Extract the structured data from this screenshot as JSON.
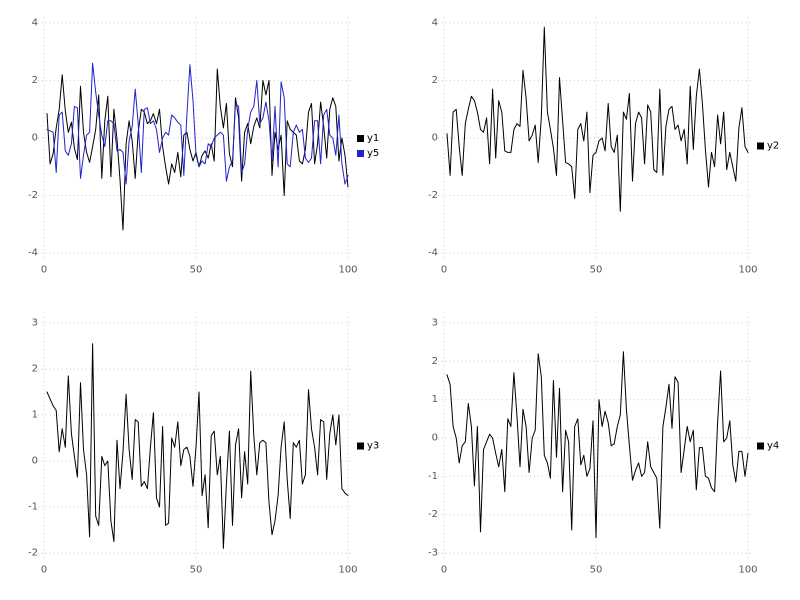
{
  "page": {
    "background": "#ffffff"
  },
  "colors": {
    "grid": "#ccccd6",
    "tick_label": "#555555",
    "legend_text": "#000000",
    "series_black": "#000000",
    "series_blue": "#2222cc"
  },
  "chart_data": [
    {
      "type": "line",
      "position": "top-left",
      "title": "",
      "xlabel": "",
      "ylabel": "",
      "grid": true,
      "legend_position": "right-middle",
      "x_ticks": [
        0,
        50,
        100
      ],
      "y_ticks": [
        -4,
        -2,
        0,
        2,
        4
      ],
      "xlim": [
        0,
        100
      ],
      "ylim": [
        -4,
        4
      ],
      "x_start": 1,
      "x_step": 1,
      "series": [
        {
          "name": "y1",
          "color": "#000000",
          "values": [
            0.85,
            -0.9,
            -0.55,
            0.35,
            1.0,
            2.2,
            0.95,
            0.2,
            0.55,
            -0.35,
            -0.75,
            1.8,
            0.2,
            -0.5,
            -0.85,
            -0.3,
            0.3,
            1.5,
            -1.4,
            0.6,
            1.45,
            -1.35,
            1.0,
            -0.05,
            -1.45,
            -3.2,
            -0.2,
            0.6,
            -0.1,
            -1.4,
            0.2,
            1.0,
            0.9,
            0.5,
            0.6,
            0.85,
            0.5,
            1.0,
            -0.3,
            -1.0,
            -1.6,
            -0.9,
            -1.2,
            -0.5,
            -1.35,
            0.1,
            0.2,
            -0.4,
            -0.8,
            -0.5,
            -1.0,
            -0.6,
            -0.45,
            -0.7,
            -0.2,
            -0.8,
            2.4,
            1.1,
            0.35,
            1.2,
            -0.55,
            -1.0,
            1.4,
            0.7,
            -1.5,
            0.2,
            0.5,
            -0.2,
            0.4,
            0.7,
            0.35,
            2.0,
            1.5,
            2.0,
            -1.3,
            0.2,
            -0.4,
            0.1,
            -2.0,
            0.6,
            0.3,
            0.2,
            0.1,
            -0.8,
            -0.9,
            -0.4,
            0.9,
            1.2,
            -0.9,
            -0.2,
            1.25,
            0.4,
            -0.7,
            1.0,
            1.4,
            1.1,
            -0.8,
            0.0,
            -0.6,
            -1.7
          ]
        },
        {
          "name": "y5",
          "color": "#2222cc",
          "values": [
            0.3,
            0.25,
            0.2,
            -1.2,
            0.8,
            0.9,
            -0.45,
            -0.6,
            -0.2,
            1.1,
            1.05,
            -1.4,
            -0.6,
            0.1,
            0.2,
            2.6,
            1.6,
            0.8,
            0.1,
            -0.3,
            0.6,
            0.6,
            0.5,
            -0.45,
            -0.4,
            -0.5,
            -1.6,
            -0.1,
            0.4,
            1.7,
            0.5,
            -1.2,
            1.0,
            1.05,
            0.5,
            0.6,
            0.3,
            -0.5,
            0.0,
            0.2,
            0.1,
            0.8,
            0.7,
            0.55,
            0.45,
            -1.3,
            0.8,
            2.55,
            1.3,
            -0.6,
            -1.0,
            -0.8,
            -0.9,
            -0.2,
            -0.3,
            0.0,
            0.1,
            0.2,
            0.1,
            -1.5,
            -1.0,
            -0.8,
            1.2,
            1.1,
            -1.2,
            -0.9,
            0.3,
            0.9,
            1.1,
            2.0,
            0.5,
            0.7,
            1.25,
            0.6,
            -0.8,
            1.1,
            -1.0,
            1.95,
            1.4,
            -0.9,
            -1.0,
            0.2,
            0.45,
            0.2,
            0.3,
            -0.7,
            -0.85,
            -0.7,
            0.6,
            0.6,
            -0.9,
            0.8,
            1.0,
            0.1,
            0.0,
            -0.6,
            0.8,
            -0.9,
            -1.6,
            -1.3
          ]
        }
      ]
    },
    {
      "type": "line",
      "position": "top-right",
      "title": "",
      "xlabel": "",
      "ylabel": "",
      "grid": true,
      "legend_position": "right-middle",
      "x_ticks": [
        0,
        50,
        100
      ],
      "y_ticks": [
        -4,
        -2,
        0,
        2,
        4
      ],
      "xlim": [
        0,
        100
      ],
      "ylim": [
        -4,
        4
      ],
      "x_start": 1,
      "x_step": 1,
      "series": [
        {
          "name": "y2",
          "color": "#000000",
          "values": [
            0.15,
            -1.3,
            0.9,
            1.0,
            -0.3,
            -1.3,
            0.5,
            1.0,
            1.45,
            1.3,
            0.9,
            0.3,
            0.2,
            0.7,
            -0.9,
            1.7,
            -0.7,
            1.3,
            0.9,
            -0.45,
            -0.5,
            -0.5,
            0.3,
            0.5,
            0.4,
            2.35,
            1.4,
            -0.1,
            0.1,
            0.45,
            -0.85,
            0.7,
            3.85,
            0.9,
            0.3,
            -0.35,
            -1.3,
            2.1,
            0.6,
            -0.85,
            -0.9,
            -1.0,
            -2.1,
            0.3,
            0.5,
            -0.1,
            0.9,
            -1.9,
            -0.6,
            -0.5,
            -0.1,
            0.0,
            -0.45,
            1.2,
            -0.3,
            -0.5,
            0.1,
            -2.55,
            0.9,
            0.65,
            1.55,
            -1.5,
            0.5,
            0.9,
            0.7,
            -0.9,
            1.15,
            0.9,
            -1.1,
            -1.2,
            1.7,
            -1.3,
            0.4,
            1.0,
            1.1,
            0.3,
            0.45,
            -0.1,
            0.3,
            -0.9,
            1.8,
            -0.4,
            1.45,
            2.4,
            1.2,
            -0.4,
            -1.7,
            -0.5,
            -1.0,
            0.8,
            -0.2,
            0.9,
            -1.1,
            -0.5,
            -1.0,
            -1.5,
            0.35,
            1.05,
            -0.3,
            -0.5
          ]
        }
      ]
    },
    {
      "type": "line",
      "position": "bottom-left",
      "title": "",
      "xlabel": "",
      "ylabel": "",
      "grid": true,
      "legend_position": "right-middle",
      "x_ticks": [
        0,
        50,
        100
      ],
      "y_ticks": [
        -2,
        -1,
        0,
        1,
        2,
        3
      ],
      "xlim": [
        0,
        100
      ],
      "ylim": [
        -2,
        3
      ],
      "x_start": 1,
      "x_step": 1,
      "series": [
        {
          "name": "y3",
          "color": "#000000",
          "values": [
            1.5,
            1.35,
            1.2,
            1.1,
            0.2,
            0.7,
            0.3,
            1.85,
            0.6,
            0.1,
            -0.35,
            1.7,
            0.25,
            -0.3,
            -1.65,
            2.55,
            -1.2,
            -1.4,
            0.1,
            -0.1,
            0.0,
            -1.3,
            -1.75,
            0.45,
            -0.6,
            0.2,
            1.45,
            0.25,
            -0.4,
            0.9,
            0.85,
            -0.55,
            -0.45,
            -0.6,
            0.3,
            1.05,
            -0.8,
            -1.0,
            0.75,
            -1.4,
            -1.35,
            0.5,
            0.3,
            0.85,
            -0.1,
            0.25,
            0.3,
            0.1,
            -0.55,
            0.3,
            1.5,
            -0.75,
            -0.3,
            -1.45,
            0.55,
            0.65,
            -0.3,
            0.1,
            -1.9,
            -0.5,
            0.65,
            -1.4,
            0.35,
            0.7,
            -0.8,
            0.2,
            -0.5,
            1.95,
            0.55,
            -0.3,
            0.4,
            0.45,
            0.4,
            -0.9,
            -1.6,
            -1.3,
            -0.75,
            0.3,
            0.85,
            -0.4,
            -1.25,
            0.4,
            0.3,
            0.45,
            -0.5,
            -0.3,
            1.55,
            0.7,
            0.3,
            -0.3,
            0.9,
            0.85,
            -0.4,
            0.6,
            1.0,
            0.35,
            1.0,
            -0.6,
            -0.7,
            -0.75
          ]
        }
      ]
    },
    {
      "type": "line",
      "position": "bottom-right",
      "title": "",
      "xlabel": "",
      "ylabel": "",
      "grid": true,
      "legend_position": "right-middle",
      "x_ticks": [
        0,
        50,
        100
      ],
      "y_ticks": [
        -3,
        -2,
        -1,
        0,
        1,
        2,
        3
      ],
      "xlim": [
        0,
        100
      ],
      "ylim": [
        -3,
        3
      ],
      "x_start": 1,
      "x_step": 1,
      "series": [
        {
          "name": "y4",
          "color": "#000000",
          "values": [
            1.65,
            1.4,
            0.3,
            0.0,
            -0.65,
            -0.2,
            -0.1,
            0.9,
            0.3,
            -1.25,
            0.3,
            -2.45,
            -0.3,
            -0.1,
            0.1,
            0.0,
            -0.4,
            -0.75,
            -0.3,
            -1.4,
            0.5,
            0.3,
            1.7,
            0.55,
            -0.75,
            0.75,
            0.3,
            -0.9,
            0.0,
            0.2,
            2.2,
            1.6,
            -0.45,
            -0.65,
            -1.05,
            1.5,
            -0.5,
            1.3,
            -1.4,
            0.2,
            -0.1,
            -2.4,
            0.3,
            0.5,
            -0.7,
            -0.45,
            -1.0,
            -0.8,
            0.45,
            -2.6,
            1.0,
            0.3,
            0.7,
            0.4,
            -0.2,
            -0.15,
            0.3,
            0.6,
            2.25,
            0.75,
            -0.2,
            -1.1,
            -0.85,
            -0.65,
            -1.0,
            -0.9,
            -0.1,
            -0.75,
            -0.9,
            -1.05,
            -2.35,
            0.3,
            0.8,
            1.4,
            0.25,
            1.6,
            1.45,
            -0.9,
            -0.3,
            0.3,
            -0.1,
            0.2,
            -1.35,
            -0.25,
            -0.25,
            -1.0,
            -1.05,
            -1.3,
            -1.4,
            0.4,
            1.75,
            -0.1,
            0.0,
            0.45,
            -0.7,
            -1.15,
            -0.35,
            -0.35,
            -1.0,
            -0.4
          ]
        }
      ]
    }
  ]
}
